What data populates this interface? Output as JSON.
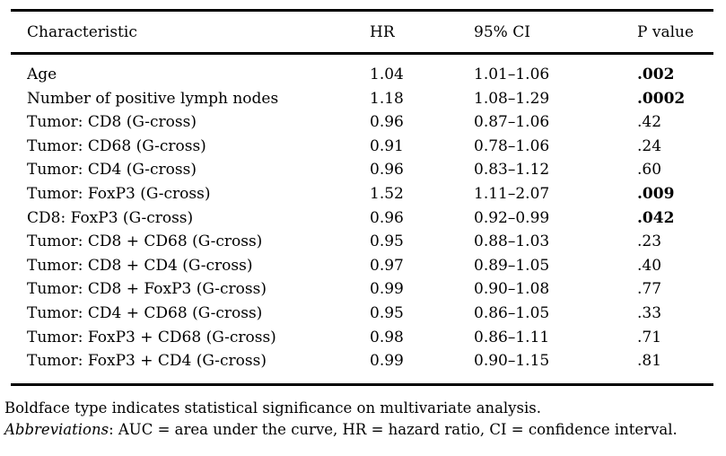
{
  "table": {
    "columns": {
      "characteristic": "Characteristic",
      "hr": "HR",
      "ci": "95% CI",
      "p": "P value"
    },
    "rows": [
      {
        "characteristic": "Age",
        "hr": "1.04",
        "ci": "1.01–1.06",
        "p": ".002",
        "significant": true
      },
      {
        "characteristic": "Number of positive lymph nodes",
        "hr": "1.18",
        "ci": "1.08–1.29",
        "p": ".0002",
        "significant": true
      },
      {
        "characteristic": "Tumor: CD8 (G-cross)",
        "hr": "0.96",
        "ci": "0.87–1.06",
        "p": ".42",
        "significant": false
      },
      {
        "characteristic": "Tumor: CD68 (G-cross)",
        "hr": "0.91",
        "ci": "0.78–1.06",
        "p": ".24",
        "significant": false
      },
      {
        "characteristic": "Tumor: CD4 (G-cross)",
        "hr": "0.96",
        "ci": "0.83–1.12",
        "p": ".60",
        "significant": false
      },
      {
        "characteristic": "Tumor: FoxP3 (G-cross)",
        "hr": "1.52",
        "ci": "1.11–2.07",
        "p": ".009",
        "significant": true
      },
      {
        "characteristic": "CD8: FoxP3 (G-cross)",
        "hr": "0.96",
        "ci": "0.92–0.99",
        "p": ".042",
        "significant": true
      },
      {
        "characteristic": "Tumor: CD8 + CD68 (G-cross)",
        "hr": "0.95",
        "ci": "0.88–1.03",
        "p": ".23",
        "significant": false
      },
      {
        "characteristic": "Tumor: CD8 + CD4 (G-cross)",
        "hr": "0.97",
        "ci": "0.89–1.05",
        "p": ".40",
        "significant": false
      },
      {
        "characteristic": "Tumor: CD8 + FoxP3 (G-cross)",
        "hr": "0.99",
        "ci": "0.90–1.08",
        "p": ".77",
        "significant": false
      },
      {
        "characteristic": "Tumor: CD4 + CD68 (G-cross)",
        "hr": "0.95",
        "ci": "0.86–1.05",
        "p": ".33",
        "significant": false
      },
      {
        "characteristic": "Tumor: FoxP3 + CD68 (G-cross)",
        "hr": "0.98",
        "ci": "0.86–1.11",
        "p": ".71",
        "significant": false
      },
      {
        "characteristic": "Tumor: FoxP3 + CD4 (G-cross)",
        "hr": "0.99",
        "ci": "0.90–1.15",
        "p": ".81",
        "significant": false
      }
    ],
    "footnotes": {
      "boldface_note": "Boldface type indicates statistical significance on multivariate analysis.",
      "abbreviations_label": "Abbreviations",
      "abbreviations_rest": ": AUC = area under the curve, HR = hazard ratio, CI = confidence interval."
    }
  }
}
